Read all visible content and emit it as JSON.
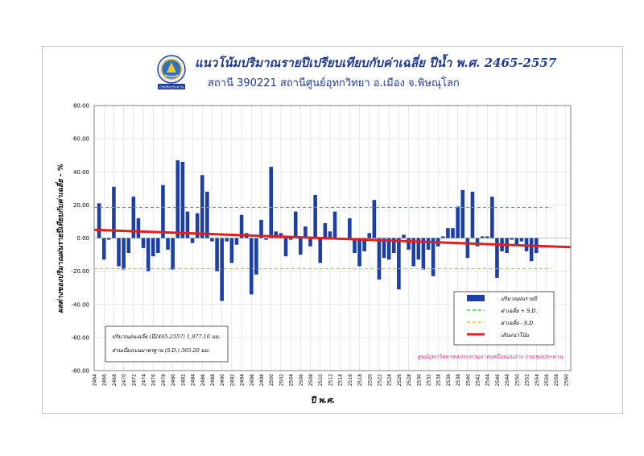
{
  "header": {
    "title": "แนวโน้มปริมาณรายปีเปรียบเทียบกับค่าเฉลี่ย ปีน้ำ พ.ศ. 2465-2557",
    "subtitle": "สถานี 390221 สถานีศูนย์อุทกวิทยา อ.เมือง จ.พิษณุโลก",
    "logo_caption": "กรมชลประทาน"
  },
  "colors": {
    "bar": "#1c3fa5",
    "mean_plus_sd": "#33cc33",
    "mean_minus_sd": "#f0b020",
    "trend": "#e02020",
    "footer_note": "#e0308a"
  },
  "chart_data": {
    "type": "bar",
    "ylabel": "ผลต่างของปริมาณฝนรายปีเทียบกับค่าเฉลี่ย - %",
    "xlabel": "ปี พ.ศ.",
    "ylim": [
      -80,
      80
    ],
    "yticks": [
      "80.00",
      "60.00",
      "40.00",
      "20.00",
      "0.00",
      "-20.00",
      "-40.00",
      "-60.00",
      "-80.00"
    ],
    "xlim": [
      2464,
      2561
    ],
    "xticks": [
      "2464",
      "2466",
      "2468",
      "2470",
      "2472",
      "2474",
      "2476",
      "2478",
      "2480",
      "2482",
      "2484",
      "2486",
      "2488",
      "2490",
      "2492",
      "2494",
      "2496",
      "2498",
      "2500",
      "2502",
      "2504",
      "2506",
      "2508",
      "2510",
      "2512",
      "2514",
      "2516",
      "2518",
      "2520",
      "2522",
      "2524",
      "2526",
      "2528",
      "2530",
      "2532",
      "2534",
      "2536",
      "2538",
      "2540",
      "2542",
      "2544",
      "2546",
      "2548",
      "2550",
      "2552",
      "2554",
      "2556",
      "2558",
      "2560"
    ],
    "grid": true,
    "series": [
      {
        "name": "ปริมาณฝนรายปี",
        "x": [
          2465,
          2466,
          2467,
          2468,
          2469,
          2470,
          2471,
          2472,
          2473,
          2474,
          2475,
          2476,
          2477,
          2478,
          2479,
          2480,
          2481,
          2482,
          2483,
          2484,
          2485,
          2486,
          2487,
          2488,
          2489,
          2490,
          2491,
          2492,
          2493,
          2494,
          2495,
          2496,
          2497,
          2498,
          2499,
          2500,
          2501,
          2502,
          2503,
          2504,
          2505,
          2506,
          2507,
          2508,
          2509,
          2510,
          2511,
          2512,
          2513,
          2514,
          2515,
          2516,
          2517,
          2518,
          2519,
          2520,
          2521,
          2522,
          2523,
          2524,
          2525,
          2526,
          2527,
          2528,
          2529,
          2530,
          2531,
          2532,
          2533,
          2534,
          2535,
          2536,
          2537,
          2538,
          2539,
          2540,
          2541,
          2542,
          2543,
          2544,
          2545,
          2546,
          2547,
          2548,
          2549,
          2550,
          2551,
          2552,
          2553,
          2554,
          2555,
          2556,
          2557
        ],
        "values": [
          21,
          -13,
          -1,
          31,
          -17,
          -19,
          -9,
          25,
          12,
          -6,
          -20,
          -11,
          -9,
          32,
          -7,
          -19,
          47,
          46,
          16,
          -3,
          15,
          38,
          28,
          -2,
          -20,
          -38,
          -2,
          -15,
          -4,
          14,
          3,
          -34,
          -22,
          11,
          -1,
          43,
          4,
          3,
          -11,
          -1,
          16,
          -10,
          7,
          -5,
          26,
          -15,
          9,
          4,
          16,
          -1,
          -1,
          12,
          -9,
          -17,
          -8,
          3,
          23,
          -25,
          -12,
          -13,
          -9,
          -31,
          2,
          -7,
          -17,
          -13,
          -19,
          -7,
          -23,
          -5,
          1,
          6,
          6,
          19,
          29,
          -12,
          28,
          -5,
          1,
          1,
          25,
          -24,
          -8,
          -9,
          -1,
          -4,
          -2,
          -8,
          -14,
          -9,
          0,
          0,
          0
        ],
        "color": "#1c3fa5"
      },
      {
        "name": "ค่าเฉลี่ย + S.D.",
        "value": 18.5,
        "color": "#33cc33"
      },
      {
        "name": "ค่าเฉลี่ย - S.D.",
        "value": -18.5,
        "color": "#f0b020"
      },
      {
        "name": "เส้นแนวโน้ม",
        "start": [
          2464,
          5
        ],
        "end": [
          2561,
          -5.5
        ],
        "color": "#e02020"
      }
    ],
    "legend_position": "bottom-right",
    "stats_box": {
      "line1": "ปริมาณฝนเฉลี่ย (ปี2465-2557) 1,977.10 มม.",
      "line2": "ส่วนเบี่ยงเบนมาตรฐาน  (S.D.)  365.20 มม."
    },
    "footer_note": "ศูนย์อุทกวิทยาชลประทานภาคเหนือตอนล่าง กรมชลประทาน"
  }
}
